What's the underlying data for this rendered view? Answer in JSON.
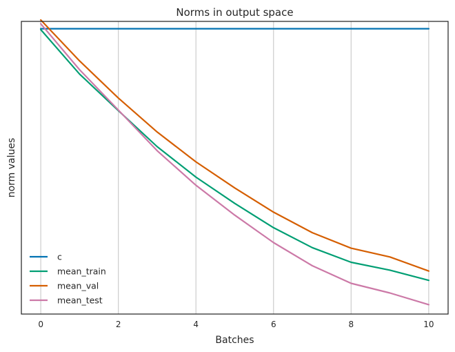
{
  "chart_data": {
    "type": "line",
    "title": "Norms in output space",
    "xlabel": "Batches",
    "ylabel": "norm values",
    "xlim": [
      -0.5,
      10.5
    ],
    "ylim": [
      0,
      1.0
    ],
    "x_ticks": [
      0,
      2,
      4,
      6,
      8,
      10
    ],
    "x_tick_labels": [
      "0",
      "2",
      "4",
      "6",
      "8",
      "10"
    ],
    "y_ticks_shown": false,
    "grid": "vertical",
    "legend_position": "lower left",
    "x": [
      0,
      1,
      2,
      3,
      4,
      5,
      6,
      7,
      8,
      9,
      10
    ],
    "series": [
      {
        "name": "c",
        "color": "#0072b2",
        "values": [
          0.975,
          0.975,
          0.975,
          0.975,
          0.975,
          0.975,
          0.975,
          0.975,
          0.975,
          0.975,
          0.975
        ]
      },
      {
        "name": "mean_train",
        "color": "#009e73",
        "values": [
          0.972,
          0.82,
          0.695,
          0.572,
          0.468,
          0.378,
          0.295,
          0.227,
          0.177,
          0.15,
          0.115
        ]
      },
      {
        "name": "mean_val",
        "color": "#d55e00",
        "values": [
          1.005,
          0.865,
          0.738,
          0.622,
          0.52,
          0.431,
          0.348,
          0.278,
          0.225,
          0.195,
          0.147
        ]
      },
      {
        "name": "mean_test",
        "color": "#cc79a7",
        "values": [
          0.992,
          0.835,
          0.697,
          0.558,
          0.44,
          0.338,
          0.244,
          0.165,
          0.105,
          0.072,
          0.032
        ]
      }
    ]
  }
}
